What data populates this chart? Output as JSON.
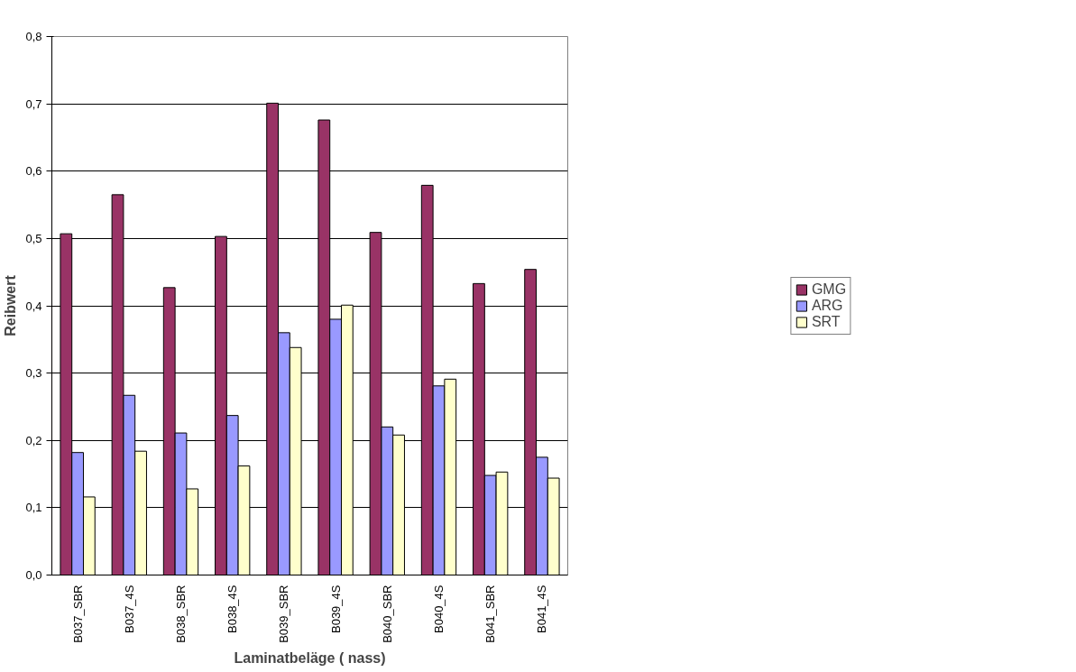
{
  "chart_data": {
    "type": "bar",
    "xlabel": "Laminatbeläge ( nass)",
    "ylabel": "Reibwert",
    "categories": [
      "B037_SBR",
      "B037_4S",
      "B038_SBR",
      "B038_4S",
      "B039_SBR",
      "B039_4S",
      "B040_SBR",
      "B040_4S",
      "B041_SBR",
      "B041_4S"
    ],
    "series": [
      {
        "name": "GMG",
        "color": "#993366",
        "values": [
          0.507,
          0.565,
          0.427,
          0.503,
          0.701,
          0.676,
          0.509,
          0.579,
          0.433,
          0.454
        ]
      },
      {
        "name": "ARG",
        "color": "#9999ff",
        "values": [
          0.182,
          0.267,
          0.211,
          0.237,
          0.36,
          0.38,
          0.22,
          0.281,
          0.148,
          0.175
        ]
      },
      {
        "name": "SRT",
        "color": "#ffffcc",
        "values": [
          0.116,
          0.184,
          0.128,
          0.162,
          0.338,
          0.401,
          0.208,
          0.291,
          0.153,
          0.144
        ]
      }
    ],
    "ylim": [
      0,
      0.8
    ],
    "yticks": [
      {
        "value": 0,
        "label": "0,0"
      },
      {
        "value": 0.1,
        "label": "0,1"
      },
      {
        "value": 0.2,
        "label": "0,2"
      },
      {
        "value": 0.3,
        "label": "0,3"
      },
      {
        "value": 0.4,
        "label": "0,4"
      },
      {
        "value": 0.5,
        "label": "0,5"
      },
      {
        "value": 0.6,
        "label": "0,6"
      },
      {
        "value": 0.7,
        "label": "0,7"
      },
      {
        "value": 0.8,
        "label": "0,8"
      }
    ],
    "grid": "y",
    "legend": "right"
  }
}
